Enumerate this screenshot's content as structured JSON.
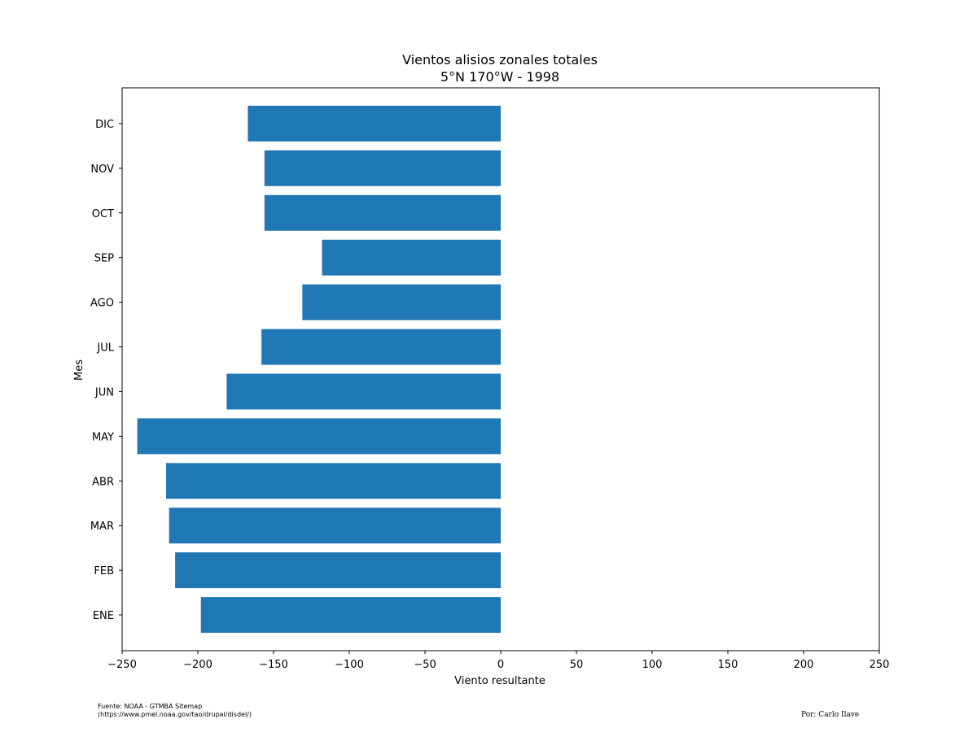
{
  "chart_data": {
    "type": "bar",
    "orientation": "horizontal",
    "title": "Vientos alisios zonales totales",
    "subtitle": "5°N 170°W - 1998",
    "xlabel": "Viento resultante",
    "ylabel": "Mes",
    "xlim": [
      -250,
      250
    ],
    "xticks": [
      -250,
      -200,
      -150,
      -100,
      -50,
      0,
      50,
      100,
      150,
      200,
      250
    ],
    "xtick_labels": [
      "−250",
      "−200",
      "−150",
      "−100",
      "−50",
      "0",
      "50",
      "100",
      "150",
      "200",
      "250"
    ],
    "categories": [
      "ENE",
      "FEB",
      "MAR",
      "ABR",
      "MAY",
      "JUN",
      "JUL",
      "AGO",
      "SEP",
      "OCT",
      "NOV",
      "DIC"
    ],
    "values": [
      -198,
      -215,
      -219,
      -221,
      -240,
      -181,
      -158,
      -131,
      -118,
      -156,
      -156,
      -167
    ],
    "bar_color": "#1f77b4",
    "grid": false,
    "legend": "none"
  },
  "footer": {
    "source_line1": "Fuente: NOAA - GTMBA Sitemap",
    "source_line2": "(https://www.pmel.noaa.gov/tao/drupal/disdel/)",
    "author": "Por: Carlo Ilave"
  }
}
